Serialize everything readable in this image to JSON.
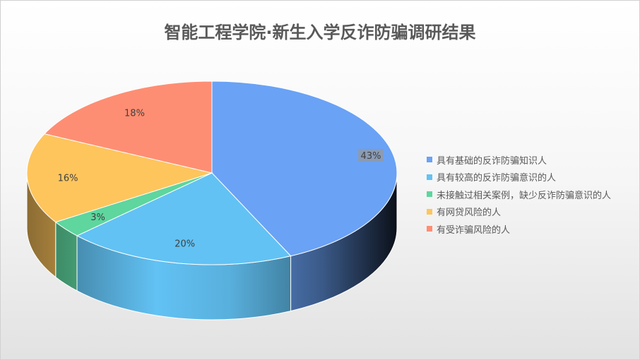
{
  "chart_data": {
    "type": "pie",
    "title": "智能工程学院·新生入学反诈防骗调研结果",
    "three_d": true,
    "legend_position": "right",
    "series": [
      {
        "name": "具有基础的反诈防骗知识人",
        "value": 43,
        "label": "43%",
        "color": "#6AA2F5"
      },
      {
        "name": "具有较高的反诈防骗意识的人",
        "value": 20,
        "label": "20%",
        "color": "#62C2F4"
      },
      {
        "name": "未接触过相关案例，缺少反诈防骗意识的人",
        "value": 3,
        "label": "3%",
        "color": "#5ED69E"
      },
      {
        "name": "有网贷风险的人",
        "value": 16,
        "label": "16%",
        "color": "#FEC55D"
      },
      {
        "name": "有受诈骗风险的人",
        "value": 18,
        "label": "18%",
        "color": "#FE8E73"
      }
    ]
  }
}
